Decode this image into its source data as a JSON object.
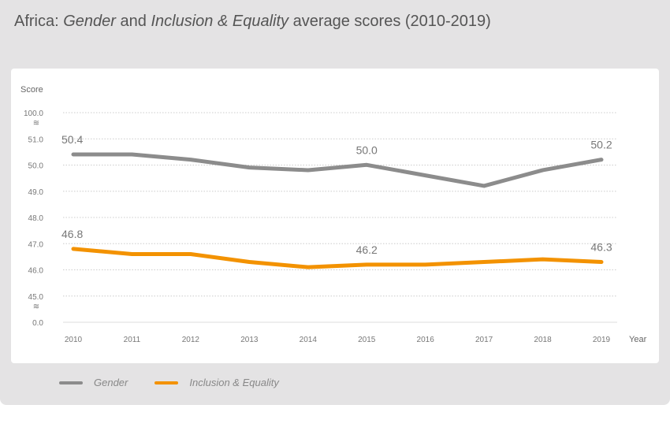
{
  "title": {
    "region": "Africa:",
    "s1": "Gender",
    "and": "and",
    "s2": "Inclusion & Equality",
    "rest": "average scores (2010-2019)"
  },
  "chart_data": {
    "type": "line",
    "ylabel": "Score",
    "xlabel": "Year",
    "x": [
      2010,
      2011,
      2012,
      2013,
      2014,
      2015,
      2016,
      2017,
      2018,
      2019
    ],
    "y_ticks": [
      "100.0",
      "51.0",
      "50.0",
      "49.0",
      "48.0",
      "47.0",
      "46.0",
      "45.0",
      "0.0"
    ],
    "y_axis_break": true,
    "ylim": [
      45,
      51
    ],
    "grid": true,
    "legend_position": "bottom-left",
    "series": [
      {
        "name": "Gender",
        "color": "#8c8c8c",
        "values": [
          50.4,
          50.4,
          50.2,
          49.9,
          49.8,
          50.0,
          49.6,
          49.2,
          49.8,
          50.2
        ],
        "data_labels": [
          {
            "x": 2010,
            "text": "50.4"
          },
          {
            "x": 2015,
            "text": "50.0"
          },
          {
            "x": 2019,
            "text": "50.2"
          }
        ]
      },
      {
        "name": "Inclusion & Equality",
        "color": "#f39200",
        "values": [
          46.8,
          46.6,
          46.6,
          46.3,
          46.1,
          46.2,
          46.2,
          46.3,
          46.4,
          46.3
        ],
        "data_labels": [
          {
            "x": 2010,
            "text": "46.8"
          },
          {
            "x": 2015,
            "text": "46.2"
          },
          {
            "x": 2019,
            "text": "46.3"
          }
        ]
      }
    ]
  }
}
